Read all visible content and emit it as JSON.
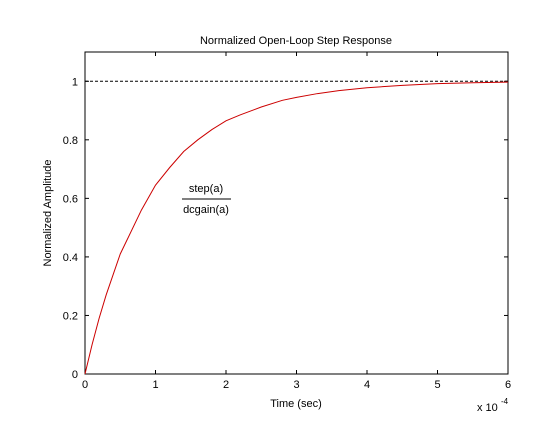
{
  "chart_data": {
    "type": "line",
    "title": "Normalized Open-Loop Step Response",
    "xlabel": "Time (sec)",
    "ylabel": "Normalized Amplitude",
    "xlim": [
      0,
      0.0006
    ],
    "ylim": [
      0,
      1.1
    ],
    "x_ticks": [
      "0",
      "1",
      "2",
      "3",
      "4",
      "5",
      "6"
    ],
    "y_ticks": [
      "0",
      "0.2",
      "0.4",
      "0.6",
      "0.8",
      "1"
    ],
    "x_multiplier_base": "x 10",
    "x_multiplier_exp": "-4",
    "grid": false,
    "annotation": {
      "numerator": "step(a)",
      "denominator": "dcgain(a)"
    },
    "reference_line": {
      "y": 1,
      "style": "dashed",
      "color": "#000000"
    },
    "series": [
      {
        "color": "#cc0000",
        "x": [
          0,
          1e-05,
          2e-05,
          3e-05,
          4e-05,
          5e-05,
          6e-05,
          8e-05,
          0.0001,
          0.00012,
          0.00014,
          0.00016,
          0.00018,
          0.0002,
          0.00022,
          0.00025,
          0.00028,
          0.0003,
          0.00033,
          0.00036,
          0.0004,
          0.00045,
          0.0005,
          0.00055,
          0.0006
        ],
        "y": [
          0,
          0.1,
          0.19,
          0.27,
          0.34,
          0.41,
          0.46,
          0.56,
          0.645,
          0.705,
          0.76,
          0.8,
          0.835,
          0.865,
          0.885,
          0.912,
          0.935,
          0.945,
          0.958,
          0.968,
          0.978,
          0.986,
          0.992,
          0.995,
          0.997
        ]
      }
    ]
  }
}
